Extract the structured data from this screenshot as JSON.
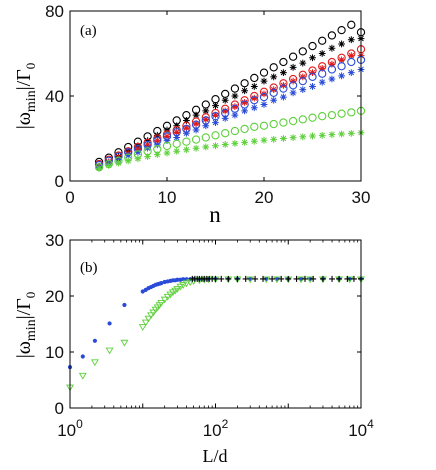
{
  "chart_data": [
    {
      "panel_label": "(a)",
      "type": "scatter",
      "xlabel": "n",
      "ylabel_main": "|ω",
      "ylabel_sub": "min",
      "ylabel_rest": "|/Γ",
      "ylabel_sub0": "0",
      "xlim": [
        0,
        30
      ],
      "ylim": [
        0,
        80
      ],
      "xticks": [
        0,
        10,
        20,
        30
      ],
      "yticks": [
        0,
        40,
        80
      ],
      "grid": false,
      "series": [
        {
          "marker": "circle",
          "color": "#000000",
          "x": [
            3,
            4,
            5,
            6,
            7,
            8,
            9,
            10,
            11,
            12,
            13,
            14,
            15,
            16,
            17,
            18,
            19,
            20,
            21,
            22,
            23,
            24,
            25,
            26,
            27,
            28,
            29,
            30
          ],
          "y": [
            9,
            11,
            13.5,
            16,
            18.5,
            21,
            23.5,
            26,
            28.5,
            31,
            33.5,
            36,
            38.5,
            41,
            43.5,
            46,
            48.5,
            51,
            53.5,
            56,
            58.5,
            61,
            63.5,
            66,
            68.5,
            71,
            73.5,
            70
          ]
        },
        {
          "marker": "star",
          "color": "#000000",
          "x": [
            3,
            4,
            5,
            6,
            7,
            8,
            9,
            10,
            11,
            12,
            13,
            14,
            15,
            16,
            17,
            18,
            19,
            20,
            21,
            22,
            23,
            24,
            25,
            26,
            27,
            28,
            29,
            30
          ],
          "y": [
            7,
            9,
            11.5,
            14,
            16.5,
            19,
            21.5,
            24,
            26,
            28.5,
            31,
            33,
            35.5,
            38,
            40,
            42.5,
            44.5,
            47,
            49,
            51,
            53.5,
            55.5,
            58,
            60,
            62.5,
            64.5,
            66.5,
            67
          ]
        },
        {
          "marker": "circle",
          "color": "#e01b1b",
          "x": [
            3,
            4,
            5,
            6,
            7,
            8,
            9,
            10,
            11,
            12,
            13,
            14,
            15,
            16,
            17,
            18,
            19,
            20,
            21,
            22,
            23,
            24,
            25,
            26,
            27,
            28,
            29,
            30
          ],
          "y": [
            8,
            10,
            12,
            14,
            16,
            18,
            20,
            22,
            24,
            26,
            28,
            30,
            32,
            34,
            36,
            38,
            40,
            42,
            44,
            46,
            48,
            50,
            52,
            54,
            56,
            58,
            60,
            62
          ]
        },
        {
          "marker": "star",
          "color": "#e01b1b",
          "x": [
            3,
            4,
            5,
            6,
            7,
            8,
            9,
            10,
            11,
            12,
            13,
            14,
            15,
            16,
            17,
            18,
            19,
            20,
            21,
            22,
            23,
            24,
            25,
            26,
            27,
            28,
            29,
            30
          ],
          "y": [
            7,
            9,
            11,
            13,
            15,
            17,
            19,
            21,
            23,
            25,
            27,
            29,
            31,
            33,
            35,
            37,
            39,
            41,
            43,
            45,
            47,
            49,
            51,
            53,
            55,
            57,
            59,
            59
          ]
        },
        {
          "marker": "circle",
          "color": "#2a4bd7",
          "x": [
            3,
            4,
            5,
            6,
            7,
            8,
            9,
            10,
            11,
            12,
            13,
            14,
            15,
            16,
            17,
            18,
            19,
            20,
            21,
            22,
            23,
            24,
            25,
            26,
            27,
            28,
            29,
            30
          ],
          "y": [
            7.5,
            9.5,
            11.5,
            13.5,
            15,
            17,
            19,
            21,
            23,
            24.5,
            26.5,
            28.5,
            30.5,
            32,
            34,
            36,
            38,
            39.5,
            41.5,
            43.5,
            45,
            47,
            49,
            50.5,
            52.5,
            54,
            56,
            57
          ]
        },
        {
          "marker": "star",
          "color": "#2a4bd7",
          "x": [
            3,
            4,
            5,
            6,
            7,
            8,
            9,
            10,
            11,
            12,
            13,
            14,
            15,
            16,
            17,
            18,
            19,
            20,
            21,
            22,
            23,
            24,
            25,
            26,
            27,
            28,
            29,
            30
          ],
          "y": [
            6.5,
            8.5,
            10,
            12,
            13.5,
            15.5,
            17,
            19,
            20.5,
            22.5,
            24,
            26,
            27.5,
            29.5,
            31,
            33,
            34.5,
            36,
            38,
            39.5,
            41.5,
            43,
            44.5,
            46.5,
            48,
            49.5,
            51,
            52.5
          ]
        },
        {
          "marker": "circle",
          "color": "#5ed03b",
          "x": [
            3,
            4,
            5,
            6,
            7,
            8,
            9,
            10,
            11,
            12,
            13,
            14,
            15,
            16,
            17,
            18,
            19,
            20,
            21,
            22,
            23,
            24,
            25,
            26,
            27,
            28,
            29,
            30
          ],
          "y": [
            6.5,
            8,
            9.5,
            11,
            12.5,
            14,
            15,
            16.5,
            17.5,
            18.5,
            19.5,
            20.5,
            21.5,
            22.5,
            23.5,
            24.5,
            25.5,
            26,
            26.8,
            27.5,
            28.2,
            29,
            29.8,
            30.5,
            31,
            31.7,
            32.3,
            33
          ]
        },
        {
          "marker": "star",
          "color": "#5ed03b",
          "x": [
            3,
            4,
            5,
            6,
            7,
            8,
            9,
            10,
            11,
            12,
            13,
            14,
            15,
            16,
            17,
            18,
            19,
            20,
            21,
            22,
            23,
            24,
            25,
            26,
            27,
            28,
            29,
            30
          ],
          "y": [
            6,
            7.3,
            8.5,
            9.5,
            10.5,
            11.5,
            12.4,
            13.2,
            14,
            14.7,
            15.4,
            16,
            16.6,
            17.2,
            17.7,
            18.2,
            18.7,
            19.2,
            19.6,
            20,
            20.4,
            20.8,
            21.2,
            21.5,
            21.8,
            22.1,
            22.4,
            22.7
          ]
        }
      ]
    },
    {
      "panel_label": "(b)",
      "type": "scatter",
      "xlabel": "L/d",
      "ylabel_main": "|ω",
      "ylabel_sub": "min",
      "ylabel_rest": "|/Γ",
      "ylabel_sub0": "0",
      "xscale": "log",
      "xlim": [
        1,
        10000
      ],
      "ylim": [
        0,
        30
      ],
      "xtick_values": [
        1,
        100,
        10000
      ],
      "xtick_base": [
        "10",
        "10",
        "10"
      ],
      "xtick_exp": [
        "0",
        "2",
        "4"
      ],
      "yticks": [
        0,
        10,
        20,
        30
      ],
      "grid": false,
      "series": [
        {
          "marker": "dot",
          "color": "#2a4bd7",
          "x": [
            1,
            1.5,
            2.2,
            3.5,
            5.6,
            10,
            11,
            12,
            13,
            14,
            15,
            16,
            17,
            18,
            20,
            22,
            24,
            26,
            28,
            30,
            33,
            36,
            40,
            45,
            50,
            60,
            70,
            80,
            100,
            150,
            200,
            300,
            500,
            700,
            1000,
            1500,
            2000,
            3000,
            5000,
            7000,
            10000
          ],
          "y": [
            7.3,
            9.2,
            12,
            15.1,
            18.4,
            20.8,
            21.1,
            21.4,
            21.6,
            21.8,
            22,
            22.1,
            22.2,
            22.3,
            22.5,
            22.6,
            22.7,
            22.8,
            22.8,
            22.9,
            22.9,
            23,
            23,
            23,
            23.05,
            23.05,
            23.05,
            23.05,
            23.05,
            23.05,
            23.05,
            23.05,
            23.05,
            23.05,
            23.05,
            23.05,
            23.05,
            23.05,
            23.05,
            23.05,
            23.05
          ]
        },
        {
          "marker": "triangle-down",
          "color": "#5ed03b",
          "x": [
            1,
            1.5,
            2.2,
            3.5,
            5.6,
            10,
            11,
            12,
            13,
            14,
            15,
            16,
            17,
            18,
            20,
            22,
            24,
            26,
            28,
            30,
            33,
            36,
            40,
            45,
            50,
            60,
            70,
            80,
            100,
            150,
            200,
            300,
            500,
            700,
            1000,
            1500,
            2000,
            3000,
            5000,
            7000,
            10000
          ],
          "y": [
            3.7,
            5.8,
            8.2,
            10.3,
            11.7,
            14.5,
            15.3,
            16,
            16.6,
            17.1,
            17.6,
            18,
            18.4,
            18.8,
            19.4,
            19.9,
            20.3,
            20.7,
            21,
            21.3,
            21.7,
            22,
            22.3,
            22.5,
            22.7,
            22.85,
            22.95,
            23,
            23,
            23,
            23,
            23,
            23,
            23,
            23,
            23,
            23,
            23,
            23,
            23,
            23
          ]
        },
        {
          "marker": "plus",
          "color": "#000000",
          "x": [
            48,
            52,
            56,
            60,
            65,
            70,
            76,
            82,
            90,
            100,
            120,
            150,
            200,
            260,
            350,
            450,
            600,
            800,
            1000,
            1300,
            1700,
            2200,
            3000,
            4000,
            5000,
            6500,
            8000,
            10000
          ],
          "y": [
            23.05,
            23.05,
            23.05,
            23.05,
            23.05,
            23.05,
            23.05,
            23.05,
            23.05,
            23.05,
            23.05,
            23.05,
            23.05,
            23.05,
            23.05,
            23.05,
            23.05,
            23.05,
            23.05,
            23.05,
            23.05,
            23.05,
            23.05,
            23.05,
            23.05,
            23.05,
            23.05,
            23.05
          ]
        }
      ]
    }
  ]
}
